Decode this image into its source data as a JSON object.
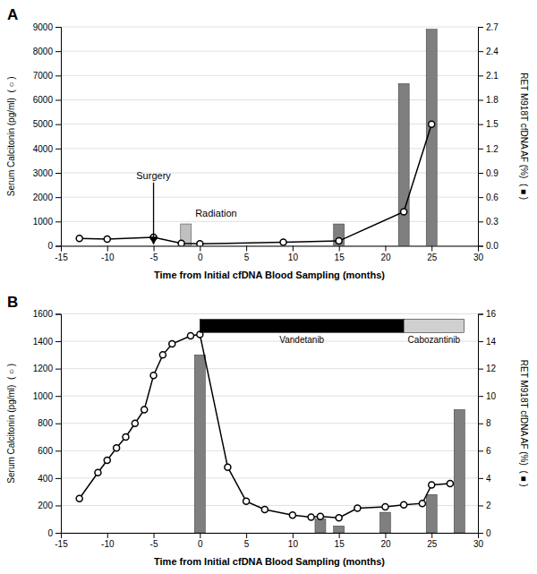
{
  "chart_data": [
    {
      "type": "combo",
      "title": "A",
      "xlabel": "Time from Initial cfDNA Blood Sampling (months)",
      "ylabel": "Serum Calcitonin (pg/ml)  ( ○ )",
      "y2label": "RET M918T cfDNA AF (%)  ( ■ )",
      "xlim": [
        -15,
        30
      ],
      "xticks": [
        -15,
        -10,
        -5,
        0,
        5,
        10,
        15,
        20,
        25,
        30
      ],
      "ylim": [
        0,
        9000
      ],
      "yticks": [
        0,
        1000,
        2000,
        3000,
        4000,
        5000,
        6000,
        7000,
        8000,
        9000
      ],
      "y2lim": [
        0,
        2.7
      ],
      "y2ticks": [
        {
          "value": 0,
          "label": "0.0"
        },
        0.3,
        0.6,
        0.9,
        1.2,
        1.5,
        1.8,
        2.1,
        2.4,
        2.7
      ],
      "grid": true,
      "series": [
        {
          "type": "bar",
          "axis": "y2",
          "color": "#7f7f7f",
          "x": [
            15,
            22,
            25
          ],
          "values": [
            0.27,
            2.0,
            2.67
          ]
        },
        {
          "type": "line",
          "color": "#000000",
          "marker": "circle",
          "x": [
            -13,
            -10,
            -5,
            -2,
            0,
            9,
            15,
            22,
            25
          ],
          "values": [
            300,
            280,
            350,
            100,
            80,
            150,
            200,
            1400,
            5000
          ]
        },
        {
          "type": "bar",
          "axis": "y2",
          "color": "#c0c0c0",
          "x": [
            -1.5
          ],
          "values": [
            0.27
          ]
        }
      ],
      "annotations": [
        {
          "text": "Surgery",
          "x": -5,
          "y": 2750,
          "marker": "arrow"
        },
        {
          "text": "Radiation",
          "x": -0.5,
          "y": 1200
        }
      ]
    },
    {
      "type": "combo",
      "title": "B",
      "xlabel": "Time from Initial cfDNA Blood Sampling (months)",
      "ylabel": "Serum Calcitonin (pg/ml)  ( ○ )",
      "y2label": "RET M918T cfDNA AF (%)  ( ■ )",
      "xlim": [
        -15,
        30
      ],
      "xticks": [
        -15,
        -10,
        -5,
        0,
        5,
        10,
        15,
        20,
        25,
        30
      ],
      "ylim": [
        0,
        1600
      ],
      "yticks": [
        0,
        200,
        400,
        600,
        800,
        1000,
        1200,
        1400,
        1600
      ],
      "y2lim": [
        0,
        16
      ],
      "y2ticks": [
        0,
        2,
        4,
        6,
        8,
        10,
        12,
        14,
        16
      ],
      "grid": true,
      "series": [
        {
          "type": "bar",
          "axis": "y2",
          "color": "#7f7f7f",
          "x": [
            0,
            13,
            15,
            20,
            25,
            28
          ],
          "values": [
            13.0,
            1.0,
            0.5,
            1.5,
            2.8,
            9.0
          ]
        },
        {
          "type": "line",
          "color": "#000000",
          "marker": "circle",
          "x": [
            -13,
            -11,
            -10,
            -9,
            -8,
            -7,
            -6,
            -5,
            -4,
            -3,
            -1,
            0,
            3,
            5,
            7,
            10,
            12,
            13,
            15,
            17,
            20,
            22,
            24,
            25,
            27
          ],
          "values": [
            250,
            440,
            530,
            620,
            700,
            800,
            900,
            1150,
            1300,
            1380,
            1440,
            1450,
            480,
            230,
            170,
            130,
            115,
            120,
            110,
            180,
            190,
            205,
            215,
            350,
            360
          ]
        }
      ],
      "periods": [
        {
          "text": "Vandetanib",
          "start": 0,
          "end": 22,
          "color": "#000000"
        },
        {
          "text": "Cabozantinib",
          "start": 22,
          "end": 28.5,
          "color": "#d0d0d0"
        }
      ]
    }
  ]
}
